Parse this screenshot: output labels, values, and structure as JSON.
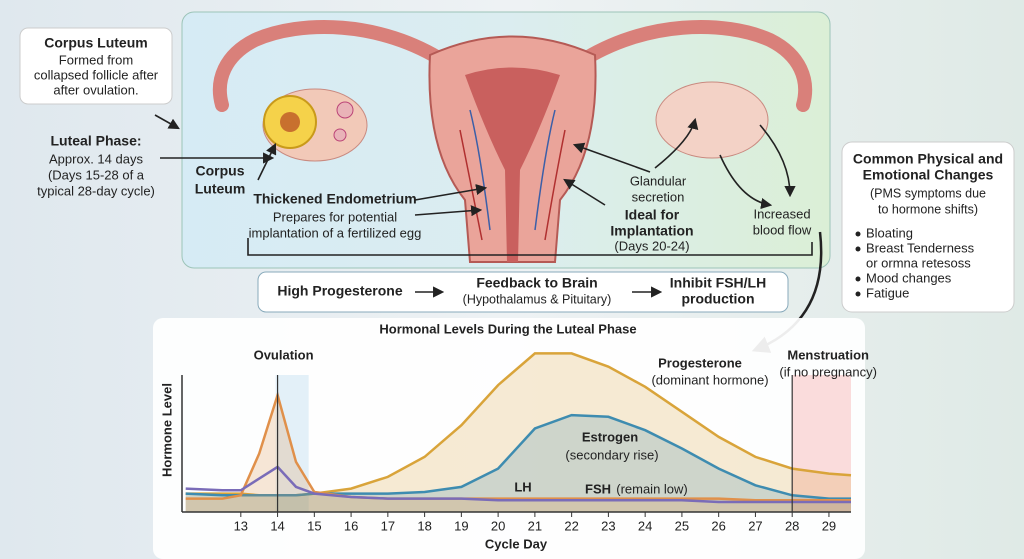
{
  "callout": {
    "title": "Corpus Luteum",
    "lines": [
      "Formed from",
      "collapsed follicle after",
      "after ovulation."
    ]
  },
  "luteal_phase": {
    "title": "Luteal Phase:",
    "lines": [
      "Approx. 14 days",
      "(Days 15-28 of a",
      "typical 28-day cycle)"
    ]
  },
  "labels": {
    "corpus_luteum": [
      "Corpus",
      "Luteum"
    ],
    "endometrium": {
      "title": "Thickened Endometrium",
      "lines": [
        "Prepares for potential",
        "implantation of a fertilized egg"
      ]
    },
    "glandular": [
      "Glandular",
      "secretion"
    ],
    "implantation": {
      "title": [
        "Ideal for",
        "Implantation"
      ],
      "note": "(Days 20-24)"
    },
    "blood_flow": [
      "Increased",
      "blood flow"
    ]
  },
  "changes": {
    "title": [
      "Common Physical and",
      "Emotional Changes"
    ],
    "subtitle": [
      "(PMS symptoms due",
      "to hormone shifts)"
    ],
    "items": [
      [
        "Bloating"
      ],
      [
        "Breast Tenderness",
        "or ormna retesoss"
      ],
      [
        "Mood changes"
      ],
      [
        "Fatigue"
      ]
    ]
  },
  "flow": {
    "start": "High Progesterone",
    "middle": {
      "title": "Feedback to Brain",
      "note": "(Hypothalamus & Pituitary)"
    },
    "end": [
      "Inhibit FSH/LH",
      "production"
    ]
  },
  "chart_data": {
    "type": "line",
    "fill": true,
    "title": "Hormonal Levels During the Luteal Phase",
    "xlabel": "Cycle Day",
    "ylabel": "Hormone Level",
    "x": [
      11.5,
      12.5,
      13,
      13.5,
      14,
      14.5,
      15,
      16,
      17,
      18,
      19,
      20,
      21,
      22,
      23,
      24,
      25,
      26,
      27,
      28,
      29,
      29.6
    ],
    "xlim": [
      11.4,
      29.6
    ],
    "xticks": [
      13,
      14,
      15,
      16,
      17,
      18,
      19,
      20,
      21,
      22,
      23,
      24,
      25,
      26,
      27,
      28,
      29
    ],
    "ylim": [
      0,
      100
    ],
    "series": [
      {
        "name": "Progesterone",
        "note": "(dominant hormone)",
        "color": "#d9a43a",
        "values": [
          11,
          11,
          11,
          10,
          10,
          10,
          11,
          14,
          21,
          33,
          52,
          76,
          95,
          95,
          87,
          75,
          60,
          45,
          33,
          26,
          23,
          22
        ]
      },
      {
        "name": "Estrogen",
        "note": "(secondary rise)",
        "color": "#3e8cb0",
        "values": [
          11,
          10,
          10,
          10,
          10,
          10,
          11,
          11,
          11,
          12,
          15,
          26,
          50,
          58,
          57,
          49,
          38,
          26,
          16,
          10,
          8,
          8
        ]
      },
      {
        "name": "LH",
        "color": "#e0904a",
        "values": [
          8,
          8,
          10,
          35,
          70,
          30,
          12,
          9,
          8,
          8,
          8,
          8,
          8,
          8,
          8,
          8,
          8,
          8,
          7,
          7,
          7,
          7
        ]
      },
      {
        "name": "FSH",
        "note": "(remain low)",
        "color": "#7a6cb8",
        "values": [
          14,
          13,
          13,
          20,
          27,
          15,
          11,
          9,
          8,
          8,
          8,
          7,
          7,
          7,
          7,
          7,
          7,
          6,
          6,
          6,
          6,
          6
        ]
      }
    ],
    "markers": [
      {
        "label": "Ovulation",
        "x": 14
      },
      {
        "label": "Menstruation",
        "note": "(if no pregnancy)",
        "x": 28
      }
    ]
  }
}
